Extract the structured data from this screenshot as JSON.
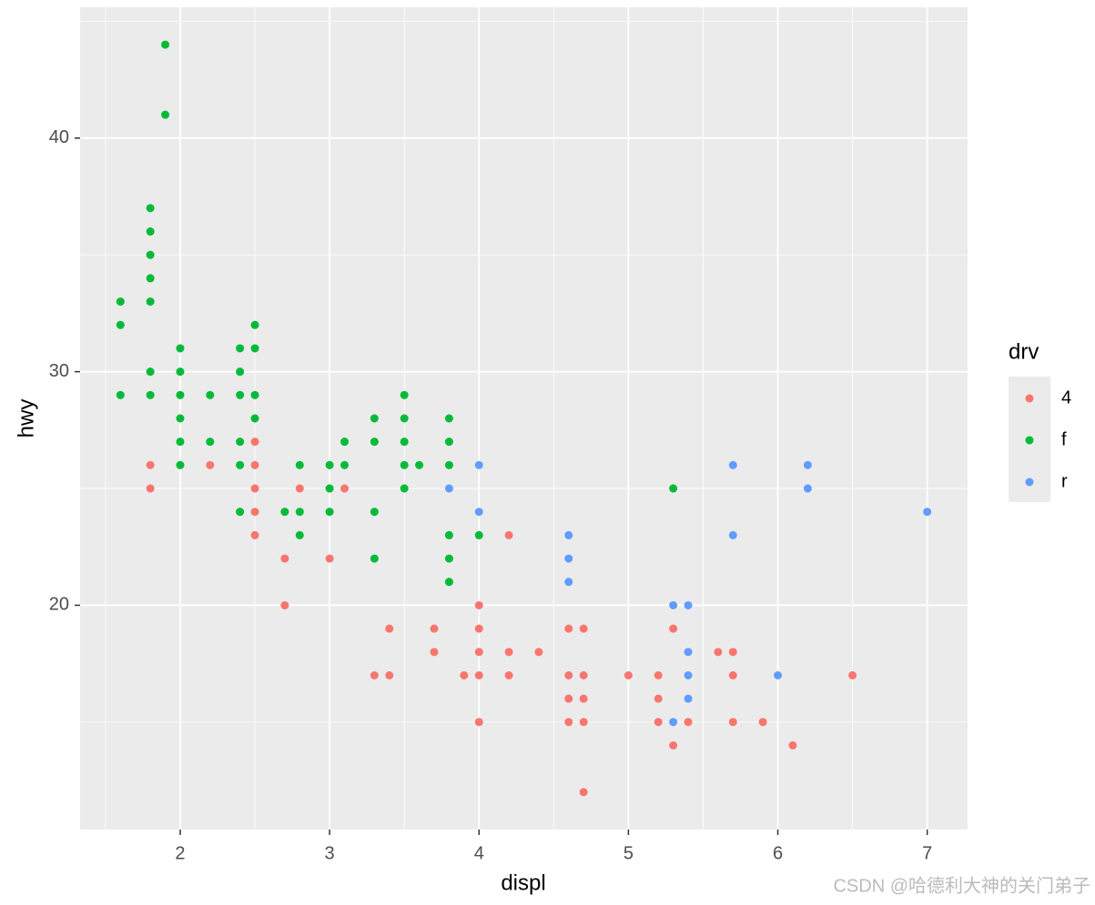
{
  "chart_data": {
    "type": "scatter",
    "xlabel": "displ",
    "ylabel": "hwy",
    "legend_title": "drv",
    "legend": "right",
    "grid": true,
    "xlim": [
      1.33,
      7.27
    ],
    "ylim": [
      10.4,
      45.6
    ],
    "xticks": [
      2,
      3,
      4,
      5,
      6,
      7
    ],
    "yticks": [
      20,
      30,
      40
    ],
    "xminor": [
      1.5,
      2.5,
      3.5,
      4.5,
      5.5,
      6.5
    ],
    "yminor": [
      15,
      25,
      35,
      45
    ],
    "watermark": "CSDN @哈德利大神的关门弟子",
    "series": [
      {
        "name": "4",
        "color": "#F8766D",
        "x": [
          1.8,
          1.8,
          2.2,
          2.5,
          2.5,
          2.5,
          2.5,
          2.5,
          2.7,
          2.7,
          2.8,
          3.0,
          3.1,
          3.3,
          3.4,
          3.4,
          3.7,
          3.7,
          3.9,
          4.0,
          4.0,
          4.0,
          4.0,
          4.0,
          4.2,
          4.2,
          4.2,
          4.4,
          4.6,
          4.6,
          4.6,
          4.6,
          4.7,
          4.7,
          4.7,
          4.7,
          4.7,
          5.0,
          5.2,
          5.2,
          5.2,
          5.3,
          5.3,
          5.4,
          5.6,
          5.7,
          5.7,
          5.7,
          5.9,
          6.1,
          6.5
        ],
        "values": [
          26,
          25,
          26,
          27,
          26,
          25,
          24,
          23,
          22,
          20,
          25,
          22,
          25,
          17,
          19,
          17,
          19,
          18,
          17,
          20,
          19,
          18,
          17,
          15,
          23,
          18,
          17,
          18,
          19,
          17,
          16,
          15,
          19,
          17,
          16,
          15,
          12,
          17,
          17,
          16,
          15,
          19,
          14,
          15,
          18,
          18,
          17,
          15,
          15,
          14,
          17
        ]
      },
      {
        "name": "f",
        "color": "#00BA38",
        "x": [
          1.6,
          1.6,
          1.6,
          1.8,
          1.8,
          1.8,
          1.8,
          1.8,
          1.8,
          1.8,
          1.9,
          1.9,
          2.0,
          2.0,
          2.0,
          2.0,
          2.0,
          2.0,
          2.2,
          2.2,
          2.4,
          2.4,
          2.4,
          2.4,
          2.4,
          2.4,
          2.5,
          2.5,
          2.5,
          2.5,
          2.7,
          2.8,
          2.8,
          2.8,
          3.0,
          3.0,
          3.0,
          3.1,
          3.1,
          3.3,
          3.3,
          3.3,
          3.3,
          3.5,
          3.5,
          3.5,
          3.5,
          3.5,
          3.6,
          3.8,
          3.8,
          3.8,
          3.8,
          3.8,
          3.8,
          4.0,
          5.3
        ],
        "values": [
          33,
          32,
          29,
          37,
          36,
          35,
          34,
          33,
          30,
          29,
          44,
          41,
          31,
          30,
          29,
          28,
          27,
          26,
          29,
          27,
          31,
          30,
          29,
          27,
          26,
          24,
          32,
          31,
          29,
          28,
          24,
          26,
          24,
          23,
          26,
          25,
          24,
          27,
          26,
          28,
          27,
          24,
          22,
          29,
          28,
          27,
          26,
          25,
          26,
          28,
          27,
          26,
          23,
          22,
          21,
          23,
          25
        ]
      },
      {
        "name": "r",
        "color": "#619CFF",
        "x": [
          3.8,
          4.0,
          4.0,
          4.6,
          4.6,
          4.6,
          5.3,
          5.3,
          5.4,
          5.4,
          5.4,
          5.4,
          5.7,
          5.7,
          6.0,
          6.2,
          6.2,
          7.0
        ],
        "values": [
          25,
          26,
          24,
          23,
          22,
          21,
          20,
          15,
          20,
          18,
          17,
          16,
          26,
          23,
          17,
          26,
          25,
          24
        ]
      }
    ]
  }
}
